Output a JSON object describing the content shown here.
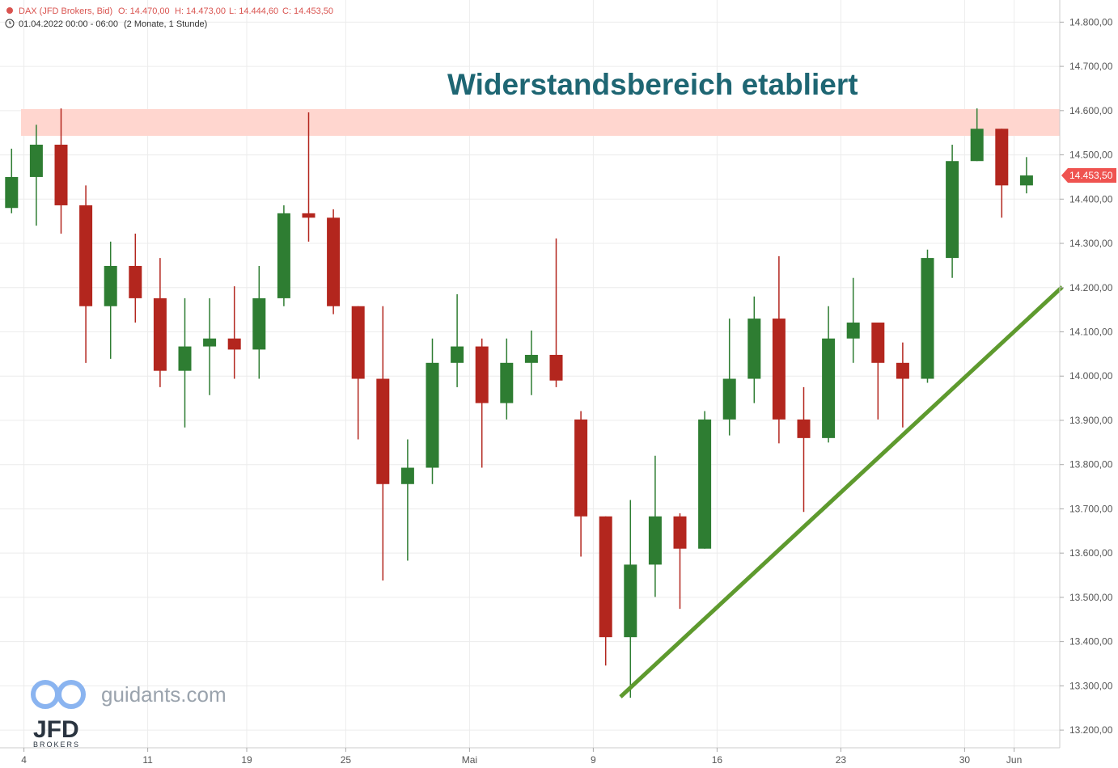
{
  "chart_data": {
    "type": "candlestick",
    "instrument": "DAX (JFD Brokers, Bid)",
    "header_ohlc": [
      "O: 14.470,00",
      "H: 14.473,00",
      "L: 14.444,60",
      "C: 14.453,50"
    ],
    "timestamp": "01.04.2022 00:00 - 06:00",
    "period": "(2 Monate, 1 Stunde)",
    "title": "Widerstandsbereich etabliert",
    "watermark": "guidants.com",
    "logo": "JFD",
    "logo_sub": "BROKERS",
    "last_price": {
      "value": 14453.5,
      "label": "14.453,50"
    },
    "categories": [
      null,
      "4",
      null,
      null,
      null,
      null,
      "11",
      null,
      null,
      null,
      "19",
      null,
      null,
      null,
      "25",
      null,
      null,
      null,
      null,
      "Mai",
      null,
      null,
      null,
      null,
      "9",
      null,
      null,
      null,
      null,
      "16",
      null,
      null,
      null,
      null,
      "23",
      null,
      null,
      null,
      null,
      "30",
      null,
      "Jun"
    ],
    "open": [
      14380,
      14450,
      14523,
      14386,
      14158,
      14249,
      14176,
      14012,
      14067,
      14085,
      14060,
      14176,
      14368,
      14358,
      14158,
      13994,
      13756,
      13793,
      14030,
      14067,
      13939,
      14030,
      14048,
      13902,
      13683,
      13410,
      13574,
      13683,
      13610,
      13902,
      13994,
      14130,
      13902,
      13860,
      14085,
      14121,
      14030,
      13994,
      14267,
      14486,
      14559,
      14431
    ],
    "high": [
      14514,
      14568,
      14605,
      14431,
      14304,
      14322,
      14267,
      14176,
      14176,
      14203,
      14249,
      14386,
      14596,
      14377,
      14158,
      14158,
      13857,
      14085,
      14185,
      14085,
      14085,
      14103,
      14311,
      13921,
      13683,
      13720,
      13820,
      13690,
      13921,
      14130,
      14180,
      14271,
      13975,
      14158,
      14222,
      14121,
      14076,
      14286,
      14523,
      14605,
      14559,
      14495
    ],
    "low": [
      14368,
      14340,
      14322,
      14030,
      14039,
      14121,
      13975,
      13884,
      13957,
      13994,
      13994,
      14158,
      14304,
      14140,
      13857,
      13538,
      13583,
      13756,
      13975,
      13793,
      13902,
      13957,
      13975,
      13592,
      13346,
      13273,
      13501,
      13474,
      13610,
      13866,
      13939,
      13848,
      13693,
      13850,
      14030,
      13902,
      13884,
      13985,
      14222,
      14486,
      14358,
      14413
    ],
    "close": [
      14450,
      14523,
      14386,
      14158,
      14249,
      14176,
      14012,
      14067,
      14085,
      14060,
      14176,
      14368,
      14358,
      14158,
      13994,
      13756,
      13793,
      14030,
      14067,
      13939,
      14030,
      14048,
      13990,
      13683,
      13410,
      13574,
      13683,
      13610,
      13902,
      13994,
      14130,
      13902,
      13860,
      14085,
      14121,
      14030,
      13994,
      14267,
      14486,
      14559,
      14431,
      14453.5
    ],
    "up_color": "#2e7d32",
    "down_color": "#b3261e",
    "ylim": [
      13160,
      14850
    ],
    "yticks": [
      {
        "value": 14800,
        "label": "14.800,00"
      },
      {
        "value": 14700,
        "label": "14.700,00"
      },
      {
        "value": 14600,
        "label": "14.600,00"
      },
      {
        "value": 14500,
        "label": "14.500,00"
      },
      {
        "value": 14400,
        "label": "14.400,00"
      },
      {
        "value": 14300,
        "label": "14.300,00"
      },
      {
        "value": 14200,
        "label": "14.200,00"
      },
      {
        "value": 14100,
        "label": "14.100,00"
      },
      {
        "value": 14000,
        "label": "14.000,00"
      },
      {
        "value": 13900,
        "label": "13.900,00"
      },
      {
        "value": 13800,
        "label": "13.800,00"
      },
      {
        "value": 13700,
        "label": "13.700,00"
      },
      {
        "value": 13600,
        "label": "13.600,00"
      },
      {
        "value": 13500,
        "label": "13.500,00"
      },
      {
        "value": 13400,
        "label": "13.400,00"
      },
      {
        "value": 13300,
        "label": "13.300,00"
      },
      {
        "value": 13200,
        "label": "13.200,00"
      }
    ],
    "grid": true
  }
}
